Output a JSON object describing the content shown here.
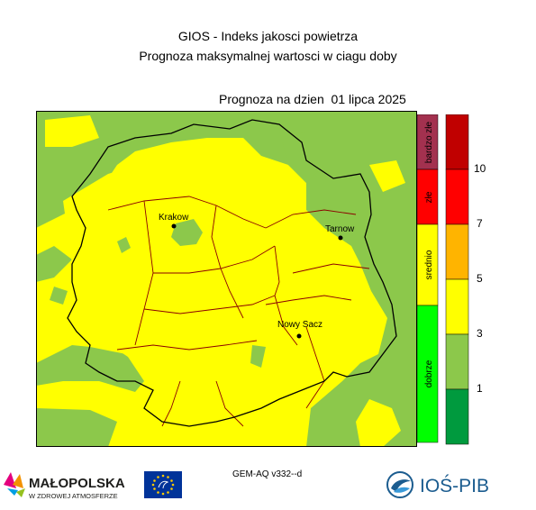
{
  "header": {
    "line1": "GIOS - Indeks jakosci powietrza",
    "line2": "Prognoza maksymalnej wartosci w ciagu doby",
    "date_line": "Prognoza na dzien  01 lipca 2025"
  },
  "map": {
    "cities": [
      {
        "name": "Krakow"
      },
      {
        "name": "Tarnow"
      },
      {
        "name": "Nowy Sacz"
      }
    ],
    "colors": {
      "good_green": "#8cc84b",
      "moderate_yellow": "#ffff00",
      "border": "#000000",
      "county_border": "#8b0000"
    }
  },
  "legend": {
    "categories": [
      {
        "label": "bardzo złe",
        "color": "#a3314f"
      },
      {
        "label": "złe",
        "color": "#ff0000"
      },
      {
        "label": "srednio",
        "color": "#ffff00"
      },
      {
        "label": "dobrze",
        "color": "#00ff00"
      }
    ],
    "scale_colors": [
      "#009a3e",
      "#8cc84b",
      "#ffff00",
      "#ffb400",
      "#ff0000",
      "#c00000"
    ],
    "levels": [
      "1",
      "3",
      "5",
      "7",
      "10"
    ]
  },
  "footer": {
    "model": "GEM-AQ v332--d",
    "malopolska_name": "MAŁOPOLSKA",
    "malopolska_slogan": "W ZDROWEJ ATMOSFERZE",
    "ios_name": "IOŚ-PIB",
    "icons": [
      "malopolska-logo-icon",
      "eu-flag-icon",
      "ios-pib-logo-icon"
    ]
  }
}
